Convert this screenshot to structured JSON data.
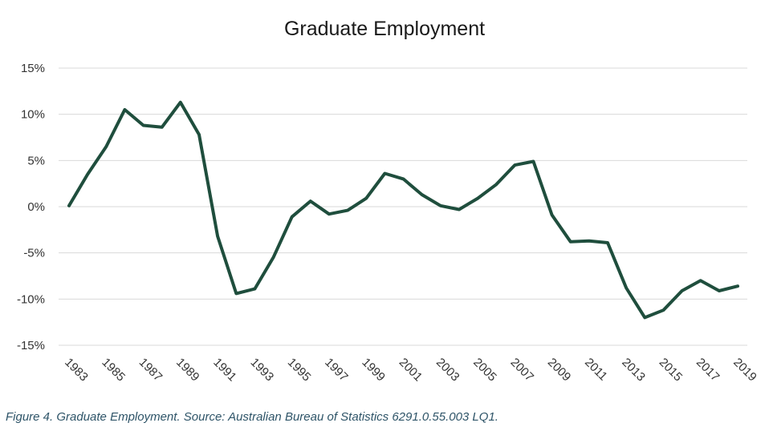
{
  "chart_data": {
    "type": "line",
    "title": "Graduate Employment",
    "xlabel": "",
    "ylabel": "",
    "ylim": [
      -15,
      15
    ],
    "yticks": [
      15,
      10,
      5,
      0,
      -5,
      -10,
      -15
    ],
    "ytick_labels": [
      "15%",
      "10%",
      "5%",
      "0%",
      "-5%",
      "-10%",
      "-15%"
    ],
    "xtick_labels": [
      "1983",
      "1985",
      "1987",
      "1989",
      "1991",
      "1993",
      "1995",
      "1997",
      "1999",
      "2001",
      "2003",
      "2005",
      "2007",
      "2009",
      "2011",
      "2013",
      "2015",
      "2017",
      "2019"
    ],
    "grid": true,
    "line_color": "#1f4e3d",
    "series": [
      {
        "x": [
          1983,
          1984,
          1985,
          1986,
          1987,
          1988,
          1989,
          1990,
          1991,
          1992,
          1993,
          1994,
          1995,
          1996,
          1997,
          1998,
          1999,
          2000,
          2001,
          2002,
          2003,
          2004,
          2005,
          2006,
          2007,
          2008,
          2009,
          2010,
          2011,
          2012,
          2013,
          2014,
          2015,
          2016,
          2017,
          2018,
          2019
        ],
        "values": [
          0.1,
          3.5,
          6.5,
          10.5,
          8.8,
          8.6,
          11.3,
          7.8,
          -3.2,
          -9.4,
          -8.9,
          -5.5,
          -1.1,
          0.6,
          -0.8,
          -0.4,
          0.9,
          3.6,
          3.0,
          1.3,
          0.1,
          -0.3,
          0.9,
          2.4,
          4.5,
          4.9,
          -0.9,
          -3.8,
          -3.7,
          -3.9,
          -8.8,
          -12.0,
          -11.2,
          -9.1,
          -8.0,
          -9.1,
          -8.6
        ]
      }
    ]
  },
  "caption": "Figure 4. Graduate Employment. Source: Australian Bureau of Statistics 6291.0.55.003  LQ1."
}
